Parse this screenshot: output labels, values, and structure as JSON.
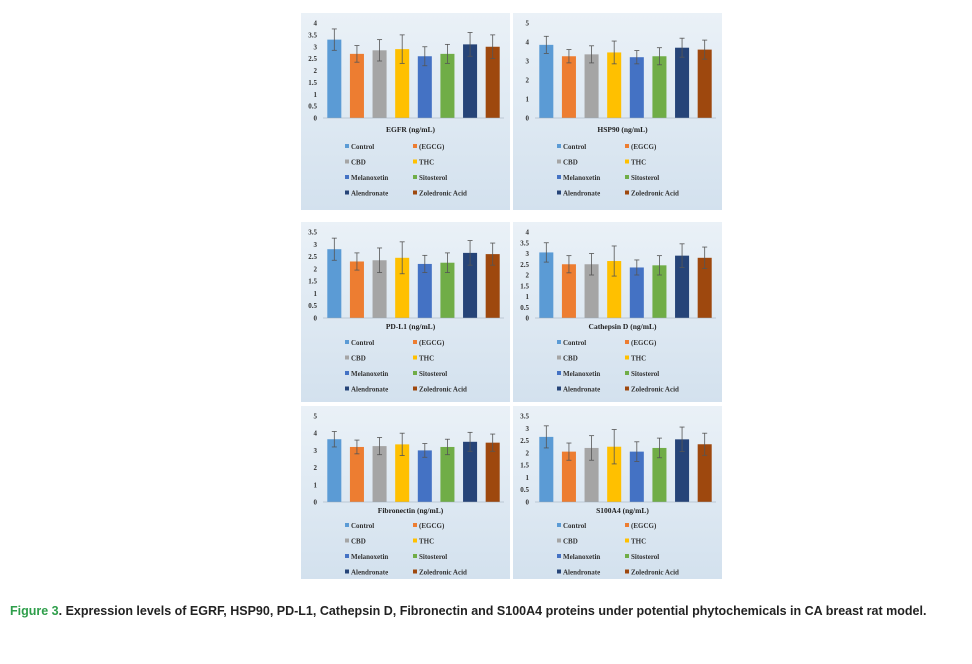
{
  "colors": {
    "Control": "#5b9bd5",
    "(EGCG)": "#ed7d31",
    "CBD": "#a5a5a5",
    "THC": "#ffc000",
    "Melanoxetin": "#4472c4",
    "Sitosterol": "#70ad47",
    "Alendronate": "#264478",
    "Zoledronic Acid": "#9e480e"
  },
  "legend_labels": [
    "Control",
    "(EGCG)",
    "CBD",
    "THC",
    "Melanoxetin",
    "Sitosterol",
    "Alendronate",
    "Zoledronic Acid"
  ],
  "caption": {
    "figure_label": "Figure 3",
    "text": ". Expression levels of EGRF, HSP90, PD-L1, Cathepsin D, Fibronectin and S100A4 proteins under potential phytochemicals in CA breast rat model."
  },
  "chart_data": [
    {
      "type": "bar",
      "xlabel": "EGFR (ng/mL)",
      "ylim": [
        0,
        4
      ],
      "yticks": [
        "0",
        "0.5",
        "1",
        "1.5",
        "2",
        "2.5",
        "3",
        "3.5",
        "4"
      ],
      "series": [
        {
          "name": "Control",
          "value": 3.3,
          "error": 0.45
        },
        {
          "name": "(EGCG)",
          "value": 2.7,
          "error": 0.35
        },
        {
          "name": "CBD",
          "value": 2.85,
          "error": 0.45
        },
        {
          "name": "THC",
          "value": 2.9,
          "error": 0.6
        },
        {
          "name": "Melanoxetin",
          "value": 2.6,
          "error": 0.4
        },
        {
          "name": "Sitosterol",
          "value": 2.7,
          "error": 0.4
        },
        {
          "name": "Alendronate",
          "value": 3.1,
          "error": 0.5
        },
        {
          "name": "Zoledronic Acid",
          "value": 3.0,
          "error": 0.5
        }
      ]
    },
    {
      "type": "bar",
      "xlabel": "HSP90 (ng/mL)",
      "ylim": [
        0,
        5
      ],
      "yticks": [
        "0",
        "1",
        "2",
        "3",
        "4",
        "5"
      ],
      "series": [
        {
          "name": "Control",
          "value": 3.85,
          "error": 0.45
        },
        {
          "name": "(EGCG)",
          "value": 3.25,
          "error": 0.35
        },
        {
          "name": "CBD",
          "value": 3.35,
          "error": 0.45
        },
        {
          "name": "THC",
          "value": 3.45,
          "error": 0.6
        },
        {
          "name": "Melanoxetin",
          "value": 3.2,
          "error": 0.35
        },
        {
          "name": "Sitosterol",
          "value": 3.25,
          "error": 0.45
        },
        {
          "name": "Alendronate",
          "value": 3.7,
          "error": 0.5
        },
        {
          "name": "Zoledronic Acid",
          "value": 3.6,
          "error": 0.5
        }
      ]
    },
    {
      "type": "bar",
      "xlabel": "PD-L1 (ng/mL)",
      "ylim": [
        0,
        3.5
      ],
      "yticks": [
        "0",
        "0.5",
        "1",
        "1.5",
        "2",
        "2.5",
        "3",
        "3.5"
      ],
      "series": [
        {
          "name": "Control",
          "value": 2.8,
          "error": 0.45
        },
        {
          "name": "(EGCG)",
          "value": 2.3,
          "error": 0.35
        },
        {
          "name": "CBD",
          "value": 2.35,
          "error": 0.5
        },
        {
          "name": "THC",
          "value": 2.45,
          "error": 0.65
        },
        {
          "name": "Melanoxetin",
          "value": 2.2,
          "error": 0.35
        },
        {
          "name": "Sitosterol",
          "value": 2.25,
          "error": 0.4
        },
        {
          "name": "Alendronate",
          "value": 2.65,
          "error": 0.5
        },
        {
          "name": "Zoledronic Acid",
          "value": 2.6,
          "error": 0.45
        }
      ]
    },
    {
      "type": "bar",
      "xlabel": "Cathepsin D (ng/mL)",
      "ylim": [
        0,
        4
      ],
      "yticks": [
        "0",
        "0.5",
        "1",
        "1.5",
        "2",
        "2.5",
        "3",
        "3.5",
        "4"
      ],
      "series": [
        {
          "name": "Control",
          "value": 3.05,
          "error": 0.45
        },
        {
          "name": "(EGCG)",
          "value": 2.5,
          "error": 0.4
        },
        {
          "name": "CBD",
          "value": 2.5,
          "error": 0.5
        },
        {
          "name": "THC",
          "value": 2.65,
          "error": 0.7
        },
        {
          "name": "Melanoxetin",
          "value": 2.35,
          "error": 0.35
        },
        {
          "name": "Sitosterol",
          "value": 2.45,
          "error": 0.45
        },
        {
          "name": "Alendronate",
          "value": 2.9,
          "error": 0.55
        },
        {
          "name": "Zoledronic Acid",
          "value": 2.8,
          "error": 0.5
        }
      ]
    },
    {
      "type": "bar",
      "xlabel": "Fibronectin (ng/mL)",
      "ylim": [
        0,
        5
      ],
      "yticks": [
        "0",
        "1",
        "2",
        "3",
        "4",
        "5"
      ],
      "series": [
        {
          "name": "Control",
          "value": 3.65,
          "error": 0.45
        },
        {
          "name": "(EGCG)",
          "value": 3.2,
          "error": 0.4
        },
        {
          "name": "CBD",
          "value": 3.25,
          "error": 0.5
        },
        {
          "name": "THC",
          "value": 3.35,
          "error": 0.65
        },
        {
          "name": "Melanoxetin",
          "value": 3.0,
          "error": 0.4
        },
        {
          "name": "Sitosterol",
          "value": 3.2,
          "error": 0.45
        },
        {
          "name": "Alendronate",
          "value": 3.5,
          "error": 0.55
        },
        {
          "name": "Zoledronic Acid",
          "value": 3.45,
          "error": 0.5
        }
      ]
    },
    {
      "type": "bar",
      "xlabel": "S100A4 (ng/mL)",
      "ylim": [
        0,
        3.5
      ],
      "yticks": [
        "0",
        "0.5",
        "1",
        "1.5",
        "2",
        "2.5",
        "3",
        "3.5"
      ],
      "series": [
        {
          "name": "Control",
          "value": 2.65,
          "error": 0.45
        },
        {
          "name": "(EGCG)",
          "value": 2.05,
          "error": 0.35
        },
        {
          "name": "CBD",
          "value": 2.2,
          "error": 0.5
        },
        {
          "name": "THC",
          "value": 2.25,
          "error": 0.7
        },
        {
          "name": "Melanoxetin",
          "value": 2.05,
          "error": 0.4
        },
        {
          "name": "Sitosterol",
          "value": 2.2,
          "error": 0.4
        },
        {
          "name": "Alendronate",
          "value": 2.55,
          "error": 0.5
        },
        {
          "name": "Zoledronic Acid",
          "value": 2.35,
          "error": 0.45
        }
      ]
    }
  ]
}
